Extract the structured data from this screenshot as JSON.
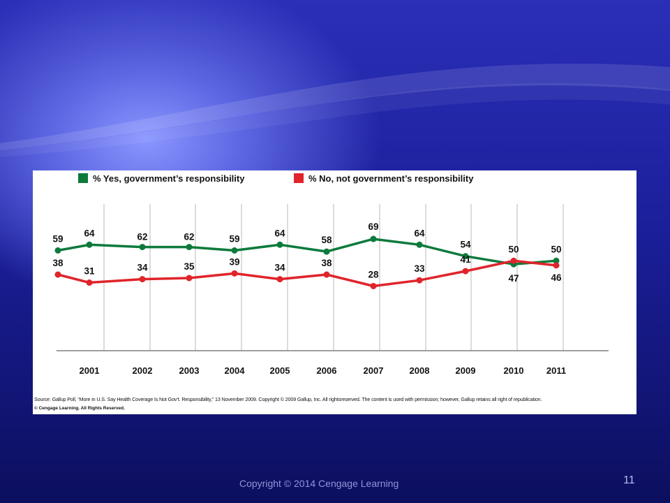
{
  "slide": {
    "footer": "Copyright © 2014 Cengage Learning",
    "number": "11"
  },
  "chart_data": {
    "type": "line",
    "title": "",
    "xlabel": "",
    "ylabel": "",
    "categories": [
      "",
      "2001",
      "2002",
      "2003",
      "2004",
      "2005",
      "2006",
      "2007",
      "2008",
      "2009",
      "2010",
      "2011"
    ],
    "ylim": [
      20,
      75
    ],
    "grid": "vertical",
    "legend_position": "top",
    "series": [
      {
        "name": "% Yes, government’s responsibility",
        "color": "#0d7a3c",
        "values": [
          59,
          64,
          62,
          62,
          59,
          64,
          58,
          69,
          64,
          54,
          47,
          50
        ]
      },
      {
        "name": "% No, not government’s responsibility",
        "color": "#e0242b",
        "values": [
          38,
          31,
          34,
          35,
          39,
          34,
          38,
          28,
          33,
          41,
          50,
          46
        ]
      }
    ],
    "source": "Source: Gallup Poll, “More in U.S. Say Health Coverage Is Not Gov’t. Responsibility,” 13 November 2009. Copyright © 2009 Gallup, Inc. All rightsreserved. The content is used with permission; however, Gallup retains all right of republication.",
    "credit": "© Cengage Learning. All Rights Reserved."
  }
}
